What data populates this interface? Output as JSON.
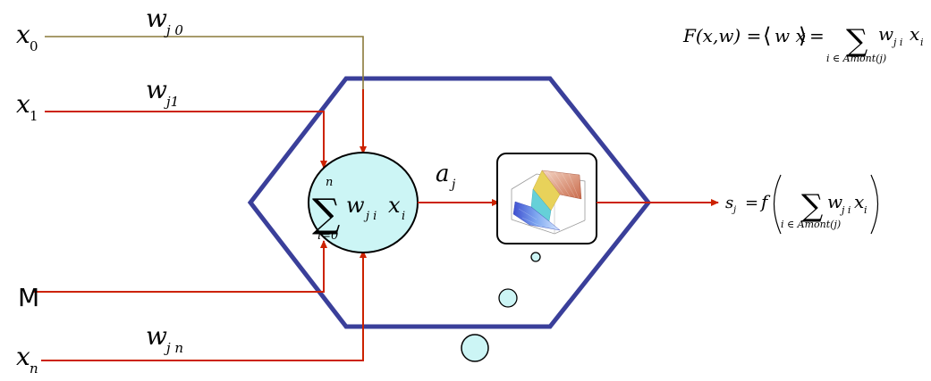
{
  "inputs": [
    {
      "var": "x",
      "sub": "0"
    },
    {
      "var": "x",
      "sub": "1"
    },
    {
      "var": "M",
      "sub": ""
    },
    {
      "var": "x",
      "sub": "n"
    }
  ],
  "weights": [
    {
      "var": "w",
      "sub": "j 0"
    },
    {
      "var": "w",
      "sub": "j1"
    },
    {
      "var": "w",
      "sub": "j n"
    }
  ],
  "neuron": {
    "sum_upper": "n",
    "sum_lower": "i=0",
    "term_w": "w",
    "term_w_sub": "j i",
    "term_x": "x",
    "term_x_sub": "i"
  },
  "activation": {
    "var": "a",
    "sub": "j"
  },
  "output": {
    "lhs": "s",
    "lhs_sub": "j",
    "eq": "=",
    "func": "f",
    "w": "w",
    "w_sub": "j i",
    "x": "x",
    "x_sub": "i",
    "sum_under": "i ∈ Amont(j)"
  },
  "formula": {
    "lhs": "F(x,w) =",
    "inner": "w x",
    "eq": "=",
    "w": "w",
    "w_sub": "j i",
    "x": "x",
    "x_sub": "i",
    "sum_under": "i ∈ Amont(j)"
  },
  "colors": {
    "wire": "#cc2200",
    "wire_top": "#8a7a3a",
    "hexagon": "#3a3f9a",
    "neuron_fill": "#ccf5f5",
    "bubble_fill": "#ccf5f5"
  }
}
